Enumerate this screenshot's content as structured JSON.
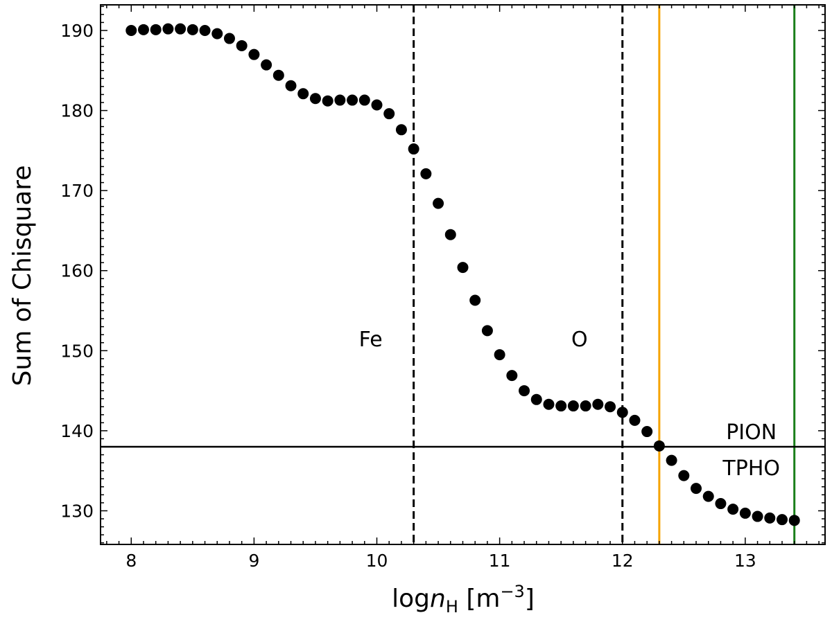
{
  "chart_data": {
    "type": "scatter",
    "title": "",
    "xlabel_main": "log",
    "xlabel_var": "n",
    "xlabel_sub": "H",
    "xlabel_unit_open": " [m",
    "xlabel_unit_exp": "−3",
    "xlabel_unit_close": "]",
    "ylabel": "Sum of Chisquare",
    "xlim": [
      7.75,
      13.65
    ],
    "ylim": [
      125.8,
      193.2
    ],
    "xticks": [
      8,
      9,
      10,
      11,
      12,
      13
    ],
    "yticks": [
      130,
      140,
      150,
      160,
      170,
      180,
      190
    ],
    "marker_color": "#000000",
    "x": [
      8.0,
      8.1,
      8.2,
      8.3,
      8.4,
      8.5,
      8.6,
      8.7,
      8.8,
      8.9,
      9.0,
      9.1,
      9.2,
      9.3,
      9.4,
      9.5,
      9.6,
      9.7,
      9.8,
      9.9,
      10.0,
      10.1,
      10.2,
      10.3,
      10.4,
      10.5,
      10.6,
      10.7,
      10.8,
      10.9,
      11.0,
      11.1,
      11.2,
      11.3,
      11.4,
      11.5,
      11.6,
      11.7,
      11.8,
      11.9,
      12.0,
      12.1,
      12.2,
      12.3,
      12.4,
      12.5,
      12.6,
      12.7,
      12.8,
      12.9,
      13.0,
      13.1,
      13.2,
      13.3,
      13.4
    ],
    "y": [
      190.0,
      190.1,
      190.1,
      190.2,
      190.2,
      190.1,
      190.0,
      189.6,
      189.0,
      188.1,
      187.0,
      185.7,
      184.4,
      183.1,
      182.1,
      181.5,
      181.2,
      181.3,
      181.3,
      181.3,
      180.7,
      179.6,
      177.6,
      175.2,
      172.1,
      168.4,
      164.5,
      160.4,
      156.3,
      152.5,
      149.5,
      146.9,
      145.0,
      143.9,
      143.3,
      143.1,
      143.1,
      143.1,
      143.3,
      143.0,
      142.3,
      141.3,
      139.9,
      138.1,
      136.3,
      134.4,
      132.8,
      131.8,
      130.9,
      130.2,
      129.7,
      129.3,
      129.1,
      128.9,
      128.8
    ],
    "vlines": [
      {
        "x": 10.3,
        "color": "#000000",
        "style": "dashed",
        "label": "Fe",
        "label_x": 9.95,
        "label_y": 151.5
      },
      {
        "x": 12.0,
        "color": "#000000",
        "style": "dashed",
        "label": "O",
        "label_x": 11.65,
        "label_y": 151.5
      },
      {
        "x": 12.3,
        "color": "#f5a300",
        "style": "solid"
      },
      {
        "x": 13.4,
        "color": "#1a7f1a",
        "style": "solid"
      }
    ],
    "hlines": [
      {
        "y": 138.0,
        "color": "#000000",
        "style": "solid"
      }
    ],
    "annotations": [
      {
        "text": "PION",
        "x": 13.05,
        "y": 139.9
      },
      {
        "text": "TPHO",
        "x": 13.05,
        "y": 135.4
      }
    ]
  }
}
